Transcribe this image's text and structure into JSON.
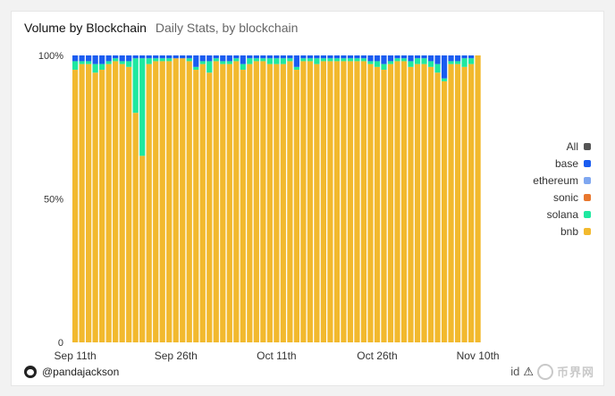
{
  "header": {
    "title": "Volume by Blockchain",
    "subtitle": "Daily Stats, by blockchain"
  },
  "author": {
    "handle": "@pandajackson",
    "icon": "panda-avatar-icon"
  },
  "watermark": {
    "text": "币界网",
    "partial_label": "id",
    "icon": "warning-icon"
  },
  "legend": [
    {
      "label": "All",
      "color": "#555555"
    },
    {
      "label": "base",
      "color": "#1a5cf0"
    },
    {
      "label": "ethereum",
      "color": "#7fa7f0"
    },
    {
      "label": "sonic",
      "color": "#e8772e"
    },
    {
      "label": "solana",
      "color": "#1ee8a0"
    },
    {
      "label": "bnb",
      "color": "#f2b92e"
    }
  ],
  "chart_data": {
    "type": "bar",
    "stacked": true,
    "normalized_percent": true,
    "title": "Volume by Blockchain",
    "subtitle": "Daily Stats, by blockchain",
    "xlabel": "",
    "ylabel": "",
    "ylim": [
      0,
      100
    ],
    "y_ticks": [
      "0",
      "50%",
      "100%"
    ],
    "x_tick_labels": [
      "Sep 11th",
      "Sep 26th",
      "Oct 11th",
      "Oct 26th",
      "Nov 10th"
    ],
    "x_tick_indices": [
      0,
      15,
      30,
      45,
      60
    ],
    "grid": false,
    "legend_position": "right",
    "colors": {
      "bnb": "#f2b92e",
      "solana": "#1ee8a0",
      "sonic": "#e8772e",
      "ethereum": "#7fa7f0",
      "base": "#1a5cf0"
    },
    "series": [
      {
        "name": "bnb",
        "values": [
          95,
          97,
          97,
          94,
          95,
          97,
          98,
          97,
          96,
          80,
          65,
          97,
          98,
          98,
          98,
          99,
          99,
          98,
          95,
          97,
          94,
          98,
          97,
          97,
          98,
          95,
          97,
          98,
          98,
          97,
          97,
          97,
          98,
          95,
          98,
          98,
          97,
          98,
          98,
          98,
          98,
          98,
          98,
          98,
          97,
          96,
          95,
          97,
          98,
          98,
          96,
          97,
          97,
          96,
          94,
          91,
          97,
          97,
          96,
          97,
          100
        ]
      },
      {
        "name": "solana",
        "values": [
          3,
          1,
          1,
          3,
          2,
          1,
          1,
          1,
          2,
          19,
          34,
          2,
          1,
          1,
          1,
          0,
          0,
          1,
          1,
          1,
          4,
          1,
          1,
          1,
          1,
          2,
          2,
          1,
          1,
          2,
          2,
          2,
          1,
          1,
          1,
          1,
          2,
          1,
          1,
          1,
          1,
          1,
          1,
          1,
          1,
          2,
          2,
          1,
          1,
          1,
          2,
          2,
          2,
          2,
          3,
          1,
          1,
          1,
          3,
          2,
          0
        ]
      },
      {
        "name": "sonic",
        "values": [
          0,
          0,
          0,
          0,
          0,
          0,
          0,
          0,
          0,
          0,
          0,
          0,
          0,
          0,
          0,
          0,
          0,
          0,
          0,
          0,
          0,
          0,
          0,
          0,
          0,
          0,
          0,
          0,
          0,
          0,
          0,
          0,
          0,
          0,
          0,
          0,
          0,
          0,
          0,
          0,
          0,
          0,
          0,
          0,
          0,
          0,
          0,
          0,
          0,
          0,
          0,
          0,
          0,
          0,
          0,
          0,
          0,
          0,
          0,
          0,
          0
        ]
      },
      {
        "name": "ethereum",
        "values": [
          0,
          0,
          0,
          0,
          0,
          0,
          0,
          0,
          0,
          0,
          0,
          0,
          0,
          0,
          0,
          0,
          0,
          0,
          0,
          0,
          0,
          0,
          0,
          0,
          0,
          0,
          0,
          0,
          0,
          0,
          0,
          0,
          0,
          0,
          0,
          0,
          0,
          0,
          0,
          0,
          0,
          0,
          0,
          0,
          0,
          0,
          0,
          0,
          0,
          0,
          0,
          0,
          0,
          0,
          0,
          0,
          0,
          0,
          0,
          0,
          0
        ]
      },
      {
        "name": "base",
        "values": [
          2,
          2,
          2,
          3,
          3,
          2,
          1,
          2,
          2,
          1,
          1,
          1,
          1,
          1,
          1,
          1,
          1,
          1,
          4,
          2,
          2,
          1,
          2,
          2,
          1,
          3,
          1,
          1,
          1,
          1,
          1,
          1,
          1,
          4,
          1,
          1,
          1,
          1,
          1,
          1,
          1,
          1,
          1,
          1,
          2,
          2,
          3,
          2,
          1,
          1,
          2,
          1,
          1,
          2,
          3,
          8,
          2,
          2,
          1,
          1,
          0
        ]
      }
    ]
  }
}
